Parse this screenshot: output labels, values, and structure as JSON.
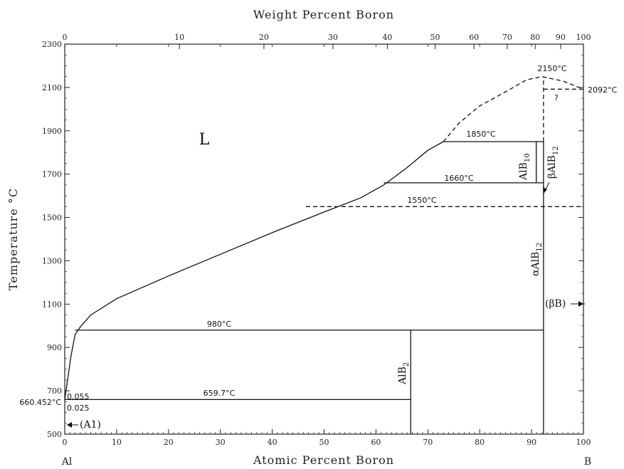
{
  "chart_data": {
    "type": "phase-diagram",
    "title": "",
    "top_axis_title": "Weight Percent Boron",
    "bottom_axis_title": "Atomic Percent Boron",
    "left_axis_title": "Temperature °C",
    "xlim": [
      0,
      100
    ],
    "ylim": [
      500,
      2300
    ],
    "x_ticks": [
      0,
      10,
      20,
      30,
      40,
      50,
      60,
      70,
      80,
      90,
      100
    ],
    "y_ticks": [
      500,
      700,
      900,
      1100,
      1300,
      1500,
      1700,
      1900,
      2100,
      2300
    ],
    "wt_ticks": [
      {
        "label": "0",
        "at": 0
      },
      {
        "label": "10",
        "at": 22.1
      },
      {
        "label": "20",
        "at": 38.4
      },
      {
        "label": "30",
        "at": 51.7
      },
      {
        "label": "40",
        "at": 62.2
      },
      {
        "label": "50",
        "at": 71.4
      },
      {
        "label": "60",
        "at": 78.9
      },
      {
        "label": "70",
        "at": 85.3
      },
      {
        "label": "80",
        "at": 90.7
      },
      {
        "label": "90",
        "at": 95.6
      },
      {
        "label": "100",
        "at": 100
      }
    ],
    "corner_labels": {
      "left": "Al",
      "right": "B"
    },
    "liquidus": [
      [
        0,
        660.452
      ],
      [
        0.6,
        760
      ],
      [
        1.2,
        860
      ],
      [
        2,
        960
      ],
      [
        3,
        995
      ],
      [
        5,
        1050
      ],
      [
        10,
        1125
      ],
      [
        20,
        1230
      ],
      [
        30,
        1330
      ],
      [
        40,
        1430
      ],
      [
        50,
        1525
      ],
      [
        57,
        1590
      ],
      [
        61.5,
        1650
      ]
    ],
    "liquidus_mid": [
      [
        61.5,
        1650
      ],
      [
        66,
        1730
      ],
      [
        70,
        1810
      ],
      [
        73,
        1850
      ]
    ],
    "liquidus_dashed": [
      [
        73,
        1850
      ],
      [
        76,
        1935
      ],
      [
        80,
        2015
      ],
      [
        85,
        2080
      ],
      [
        89,
        2135
      ],
      [
        92,
        2150
      ],
      [
        96,
        2130
      ],
      [
        100,
        2092
      ]
    ],
    "horizontal_lines": [
      {
        "y": 980,
        "x_start": 2,
        "x_end": 92.3,
        "style": "solid"
      },
      {
        "y": 659.7,
        "x_start": 0,
        "x_end": 66.7,
        "style": "solid"
      },
      {
        "y": 1660,
        "x_start": 61.5,
        "x_end": 92.3,
        "style": "solid"
      },
      {
        "y": 1850,
        "x_start": 73,
        "x_end": 92.3,
        "style": "solid"
      },
      {
        "y": 1550,
        "x_start": 46.5,
        "x_end": 100,
        "style": "dashed"
      },
      {
        "y": 2092,
        "x_start": 92.3,
        "x_end": 100,
        "style": "dashed"
      }
    ],
    "vertical_lines": [
      {
        "x": 66.7,
        "y_start": 500,
        "y_end": 980,
        "style": "solid"
      },
      {
        "x": 90.9,
        "y_start": 1660,
        "y_end": 1850,
        "style": "solid"
      },
      {
        "x": 92.3,
        "y_start": 500,
        "y_end": 1850,
        "style": "solid"
      },
      {
        "x": 92.3,
        "y_start": 1850,
        "y_end": 2150,
        "style": "dashed"
      }
    ],
    "annotations": {
      "L": "L",
      "t2150": "2150°C",
      "t2092": "2092°C",
      "q": "?",
      "t1850": "1850°C",
      "t1660": "1660°C",
      "t1550": "1550°C",
      "t980": "980°C",
      "t659": "659.7°C",
      "c0055": "0.055",
      "c0025": "0.025",
      "t660": "660.452°C",
      "al_phase": "(A1)",
      "beta_b": "(βB)",
      "alb2": "AlB",
      "alb2_sub": "2",
      "alb10": "AlB",
      "alb10_sub": "10",
      "balb12": "βAlB",
      "balb12_sub": "12",
      "aalb12": "αAlB",
      "aalb12_sub": "12"
    }
  }
}
